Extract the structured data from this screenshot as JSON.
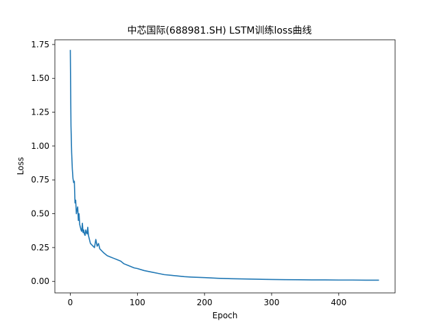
{
  "chart_data": {
    "type": "line",
    "title": "中芯国际(688981.SH) LSTM训练loss曲线",
    "xlabel": "Epoch",
    "ylabel": "Loss",
    "xlim": [
      -23,
      484
    ],
    "ylim": [
      -0.085,
      1.785
    ],
    "x_ticks": [
      0,
      100,
      200,
      300,
      400
    ],
    "y_ticks": [
      0.0,
      0.25,
      0.5,
      0.75,
      1.0,
      1.25,
      1.5,
      1.75
    ],
    "x_tick_labels": [
      "0",
      "100",
      "200",
      "300",
      "400"
    ],
    "y_tick_labels": [
      "0.00",
      "0.25",
      "0.50",
      "0.75",
      "1.00",
      "1.25",
      "1.50",
      "1.75"
    ],
    "grid": false,
    "legend": "none",
    "line_color": "#1f77b4",
    "series": [
      {
        "x": [
          0,
          1,
          2,
          3,
          4,
          5,
          6,
          7,
          8,
          9,
          10,
          11,
          12,
          13,
          14,
          15,
          16,
          17,
          18,
          19,
          20,
          21,
          22,
          23,
          24,
          25,
          26,
          27,
          28,
          29,
          30,
          32,
          34,
          36,
          38,
          40,
          42,
          44,
          46,
          48,
          50,
          55,
          60,
          65,
          70,
          75,
          80,
          85,
          90,
          95,
          100,
          110,
          120,
          130,
          140,
          150,
          160,
          170,
          180,
          190,
          200,
          220,
          240,
          260,
          280,
          300,
          320,
          340,
          360,
          380,
          400,
          420,
          440,
          460
        ],
        "values": [
          1.71,
          1.15,
          0.95,
          0.83,
          0.76,
          0.73,
          0.74,
          0.58,
          0.6,
          0.5,
          0.53,
          0.55,
          0.45,
          0.5,
          0.42,
          0.4,
          0.38,
          0.37,
          0.43,
          0.36,
          0.38,
          0.35,
          0.34,
          0.38,
          0.36,
          0.35,
          0.4,
          0.34,
          0.32,
          0.3,
          0.28,
          0.27,
          0.26,
          0.25,
          0.31,
          0.26,
          0.28,
          0.24,
          0.23,
          0.22,
          0.21,
          0.19,
          0.18,
          0.17,
          0.16,
          0.15,
          0.13,
          0.12,
          0.11,
          0.1,
          0.095,
          0.08,
          0.07,
          0.06,
          0.05,
          0.045,
          0.04,
          0.035,
          0.032,
          0.03,
          0.028,
          0.023,
          0.02,
          0.018,
          0.016,
          0.014,
          0.013,
          0.012,
          0.011,
          0.011,
          0.01,
          0.01,
          0.009,
          0.009
        ]
      }
    ]
  }
}
